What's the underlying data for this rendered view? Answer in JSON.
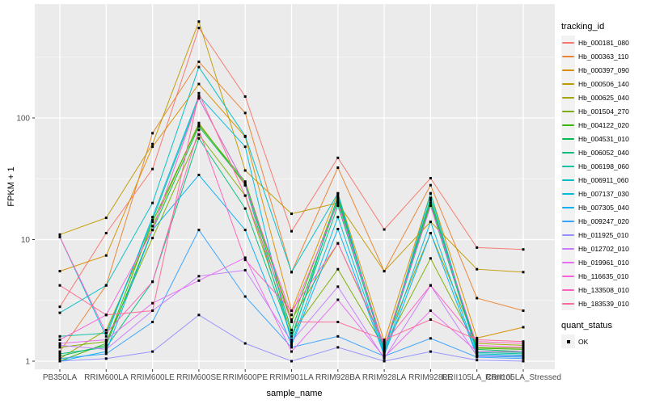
{
  "chart_data": {
    "type": "line",
    "title": "",
    "xlabel": "sample_name",
    "ylabel": "FPKM + 1",
    "y_scale": "log10",
    "y_ticks": [
      1,
      10,
      100
    ],
    "y_tick_labels": [
      "1",
      "10",
      "100"
    ],
    "y_minor_gridlines": [
      3.162,
      31.62,
      316.2
    ],
    "ylim": [
      0.86,
      870
    ],
    "grid": "on",
    "legend_position": "right",
    "legend_titles": {
      "series": "tracking_id",
      "shape": "quant_status"
    },
    "quant_status": {
      "label": "OK"
    },
    "x_categories": [
      "PB350LA",
      "RRIM600LA",
      "RRIM600LE",
      "RRIM600SE",
      "RRIM600PE",
      "RRIM901LA",
      "RRIM928BA",
      "RRIM928LA",
      "RRIM928LE",
      "RRII105LA_Control",
      "RRII105LA_Stressed"
    ],
    "series": [
      {
        "name": "Hb_000181_080",
        "color": "#F8766D",
        "values": [
          2.8,
          11.3,
          38,
          550,
          150,
          11.7,
          47,
          12.1,
          32,
          8.6,
          8.3
        ]
      },
      {
        "name": "Hb_000363_110",
        "color": "#EA8331",
        "values": [
          1.2,
          4.2,
          75,
          290,
          110,
          5.4,
          39,
          5.5,
          28,
          3.3,
          2.6
        ]
      },
      {
        "name": "Hb_000397_090",
        "color": "#D89000",
        "values": [
          5.5,
          7.4,
          58,
          190,
          70,
          2.6,
          24,
          1.45,
          24,
          1.55,
          1.9
        ]
      },
      {
        "name": "Hb_000506_140",
        "color": "#C09B00",
        "values": [
          11,
          15.1,
          61,
          620,
          37,
          16.3,
          20,
          5.5,
          14,
          5.7,
          5.4
        ]
      },
      {
        "name": "Hb_000625_040",
        "color": "#A3A500",
        "values": [
          1.05,
          1.8,
          12.9,
          91,
          28,
          2.2,
          9.3,
          1.35,
          11.3,
          1.4,
          1.35
        ]
      },
      {
        "name": "Hb_001504_270",
        "color": "#7CAE00",
        "values": [
          1.3,
          1.45,
          10.3,
          73,
          23,
          1.7,
          5.7,
          1.3,
          7.0,
          1.3,
          1.28
        ]
      },
      {
        "name": "Hb_004122_020",
        "color": "#39B600",
        "values": [
          1.0,
          1.4,
          14,
          88,
          30,
          2.1,
          22,
          1.28,
          21,
          1.28,
          1.25
        ]
      },
      {
        "name": "Hb_004531_010",
        "color": "#00BB4E",
        "values": [
          1.1,
          1.35,
          12,
          85,
          29,
          1.8,
          21,
          1.25,
          20,
          1.25,
          1.2
        ]
      },
      {
        "name": "Hb_006052_040",
        "color": "#00BF7D",
        "values": [
          1.15,
          1.3,
          4.5,
          68,
          18,
          1.6,
          19,
          1.22,
          19,
          1.2,
          1.18
        ]
      },
      {
        "name": "Hb_006198_060",
        "color": "#00C1A3",
        "values": [
          1.6,
          1.7,
          14.5,
          145,
          28,
          1.5,
          23,
          1.2,
          22,
          1.18,
          1.15
        ]
      },
      {
        "name": "Hb_006911_060",
        "color": "#00BFC4",
        "values": [
          2.5,
          4.2,
          20,
          262,
          71,
          5.4,
          24,
          1.18,
          24,
          1.15,
          1.12
        ]
      },
      {
        "name": "Hb_007137_030",
        "color": "#00BAE0",
        "values": [
          10.5,
          1.6,
          15.3,
          152,
          58,
          1.4,
          15.3,
          1.15,
          14,
          1.12,
          1.1
        ]
      },
      {
        "name": "Hb_007305_040",
        "color": "#00B0F6",
        "values": [
          1.0,
          1.2,
          12,
          34,
          12,
          1.35,
          12.2,
          1.12,
          11.3,
          1.1,
          1.08
        ]
      },
      {
        "name": "Hb_009247_020",
        "color": "#35A2FF",
        "values": [
          1.05,
          1.15,
          2.1,
          12,
          3.4,
          1.3,
          1.6,
          1.1,
          1.54,
          1.08,
          1.05
        ]
      },
      {
        "name": "Hb_011925_010",
        "color": "#9590FF",
        "values": [
          1.0,
          1.05,
          1.2,
          2.4,
          1.4,
          1.0,
          1.3,
          1.0,
          1.2,
          1.02,
          1.0
        ]
      },
      {
        "name": "Hb_012702_010",
        "color": "#C77CFF",
        "values": [
          1.35,
          1.25,
          2.6,
          5.0,
          5.6,
          1.45,
          4.1,
          1.05,
          4.2,
          1.1,
          1.1
        ]
      },
      {
        "name": "Hb_019961_010",
        "color": "#E76BF3",
        "values": [
          1.4,
          1.5,
          3.0,
          4.6,
          7.1,
          1.2,
          3.2,
          1.08,
          2.6,
          1.2,
          1.2
        ]
      },
      {
        "name": "Hb_116635_010",
        "color": "#FA62DB",
        "values": [
          1.5,
          2.4,
          12,
          145,
          28,
          2.4,
          20,
          1.3,
          19,
          1.35,
          1.3
        ]
      },
      {
        "name": "Hb_133508_010",
        "color": "#FF62BC",
        "values": [
          10.5,
          1.7,
          4.5,
          80,
          6.8,
          2.6,
          9.3,
          1.4,
          4.2,
          1.45,
          1.4
        ]
      },
      {
        "name": "Hb_183539_010",
        "color": "#FF6A98",
        "values": [
          4.2,
          2.4,
          2.6,
          160,
          23,
          2.1,
          2.1,
          1.5,
          2.2,
          1.5,
          1.45
        ]
      }
    ],
    "colors": {
      "panel_background": "#EBEBEB",
      "gridline": "#FFFFFF",
      "point": "#000000",
      "tick_mark": "#333333",
      "tick_label_text": "#4D4D4D",
      "legend_key_background": "#F2F2F2"
    }
  }
}
